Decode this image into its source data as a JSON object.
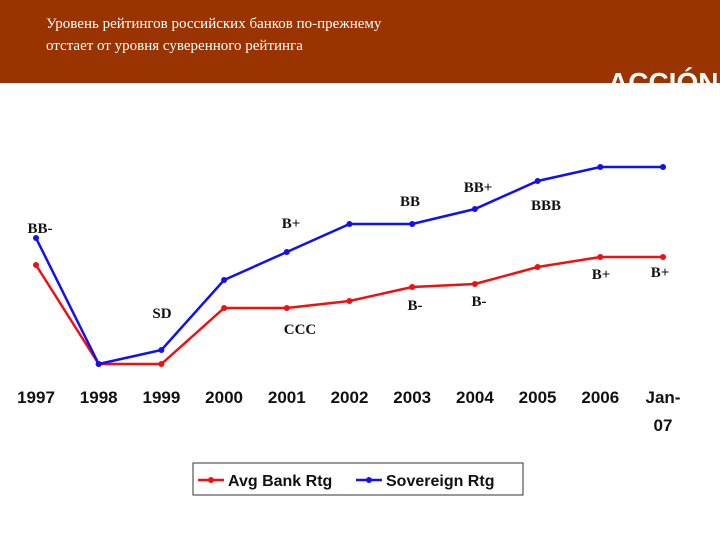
{
  "header": {
    "title_lines": [
      "Уровень рейтингов российских банков по-прежнему",
      "отстает от уровня суверенного рейтинга"
    ],
    "logo": "ACCIÓN"
  },
  "chart_data": {
    "type": "line",
    "categories": [
      "1997",
      "1998",
      "1999",
      "2000",
      "2001",
      "2002",
      "2003",
      "2004",
      "2005",
      "2006",
      [
        "Jan-",
        "07"
      ]
    ],
    "series": [
      {
        "name": "Avg Bank Rtg",
        "color": "#ee1111",
        "values": [
          115,
          16,
          16,
          72,
          72,
          79,
          93,
          96,
          113,
          123,
          123
        ]
      },
      {
        "name": "Sovereign Rtg",
        "color": "#1111ee",
        "values": [
          142,
          16,
          30,
          100,
          128,
          156,
          156,
          171,
          199,
          213,
          213
        ]
      }
    ],
    "ylim": [
      0,
      220
    ],
    "annotations": [
      "BB-",
      "SD",
      "B+",
      "BB",
      "BB+",
      "BBB",
      "B+",
      "B+",
      "CCC",
      "B-",
      "B-"
    ],
    "legend": "bottom"
  }
}
